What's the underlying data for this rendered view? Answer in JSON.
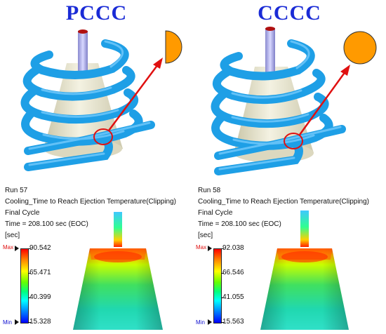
{
  "panels": [
    {
      "title": "PCCC",
      "run": "Run 57",
      "result": "Cooling_Time to Reach Ejection Temperature(Clipping)",
      "cycle": "Final Cycle",
      "time": "Time = 208.100 sec (EOC)",
      "unit": "[sec]",
      "legend": {
        "max_label": "Max",
        "min_label": "Min",
        "values": [
          "90.542",
          "65.471",
          "40.399",
          "15.328"
        ]
      }
    },
    {
      "title": "CCCC",
      "run": "Run 58",
      "result": "Cooling_Time to Reach Ejection Temperature(Clipping)",
      "cycle": "Final Cycle",
      "time": "Time = 208.100 sec (EOC)",
      "unit": "[sec]",
      "legend": {
        "max_label": "Max",
        "min_label": "Min",
        "values": [
          "92.038",
          "66.546",
          "41.055",
          "15.563"
        ]
      }
    }
  ],
  "colors": {
    "title": "#1a2bd6",
    "coil": "#1e9fe6",
    "core": "#eeebd3",
    "cross_section": "#ff9a00",
    "callout": "#e01010",
    "max_label": "#e01010",
    "min_label": "#1010d0"
  }
}
